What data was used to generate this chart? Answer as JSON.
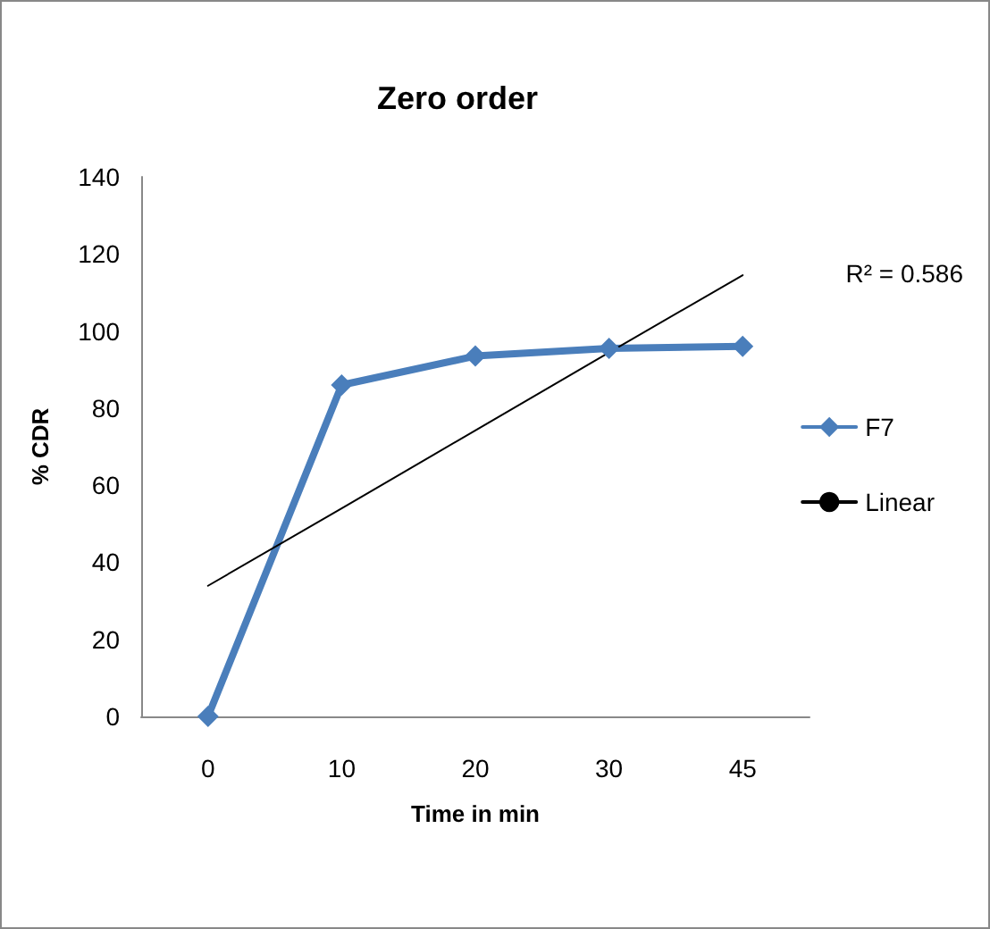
{
  "chart_data": {
    "type": "line",
    "title": "Zero order",
    "xlabel": "Time in min",
    "ylabel": "% CDR",
    "categories": [
      "0",
      "10",
      "20",
      "30",
      "45"
    ],
    "series": [
      {
        "name": "F7",
        "color": "#4a7ebb",
        "values": [
          0,
          86,
          93.5,
          95.5,
          96
        ],
        "marker": "diamond",
        "line_style": "solid"
      },
      {
        "name": "Linear",
        "color": "#000000",
        "values": [
          33.9,
          54,
          74.2,
          94.4,
          114.5
        ],
        "marker": "none",
        "line_style": "solid"
      }
    ],
    "ylim": [
      0,
      140
    ],
    "yticks": [
      0,
      20,
      40,
      60,
      80,
      100,
      120,
      140
    ],
    "grid": false,
    "legend": "right",
    "annotations": [
      "R² = 0.586"
    ]
  }
}
